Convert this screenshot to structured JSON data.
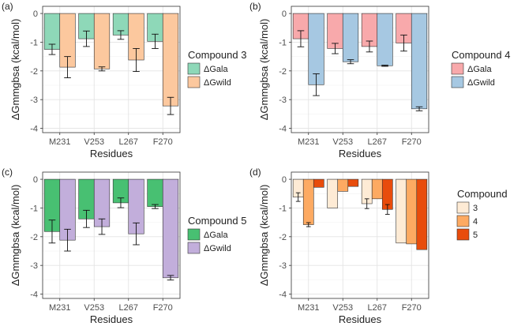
{
  "figure": {
    "title": "",
    "panel_labels": [
      "(a)",
      "(b)",
      "(c)",
      "(d)"
    ]
  },
  "chart_data": [
    {
      "type": "bar",
      "panel": "(a)",
      "categories": [
        "M231",
        "V253",
        "L267",
        "F270"
      ],
      "series": [
        {
          "name": "ΔGala",
          "values": [
            -1.25,
            -0.88,
            -0.75,
            -0.97
          ],
          "errors": [
            0.18,
            0.27,
            0.15,
            0.25
          ],
          "color": "#8ed8b8"
        },
        {
          "name": "ΔGwild",
          "values": [
            -1.87,
            -1.93,
            -1.62,
            -3.22
          ],
          "errors": [
            0.37,
            0.07,
            0.4,
            0.3
          ],
          "color": "#fcc89e"
        }
      ],
      "xlabel": "Residues",
      "ylabel": "ΔGmmgbsa (kcal/mol)",
      "ylim": [
        -4.15,
        0.25
      ],
      "yticks": [
        0,
        -1,
        -2,
        -3,
        -4
      ],
      "legend_title": "Compound 3",
      "legend_position": "right",
      "grid": true
    },
    {
      "type": "bar",
      "panel": "(b)",
      "categories": [
        "M231",
        "V253",
        "L267",
        "F270"
      ],
      "series": [
        {
          "name": "ΔGala",
          "values": [
            -0.88,
            -1.22,
            -1.15,
            -1.03
          ],
          "errors": [
            0.28,
            0.18,
            0.19,
            0.28
          ],
          "color": "#f8a9ab"
        },
        {
          "name": "ΔGwild",
          "values": [
            -2.48,
            -1.68,
            -1.82,
            -3.32
          ],
          "errors": [
            0.38,
            0.07,
            0.02,
            0.07
          ],
          "color": "#a6c8e2"
        }
      ],
      "xlabel": "Residues",
      "ylabel": "ΔGmmgbsa (kcal/mol)",
      "ylim": [
        -4.15,
        0.25
      ],
      "yticks": [
        0,
        -1,
        -2,
        -3,
        -4
      ],
      "legend_title": "Compound 4",
      "legend_position": "right",
      "grid": true
    },
    {
      "type": "bar",
      "panel": "(c)",
      "categories": [
        "M231",
        "V253",
        "L267",
        "F270"
      ],
      "series": [
        {
          "name": "ΔGala",
          "values": [
            -1.82,
            -1.38,
            -0.82,
            -0.95
          ],
          "errors": [
            0.4,
            0.3,
            0.17,
            0.07
          ],
          "color": "#48c072"
        },
        {
          "name": "ΔGwild",
          "values": [
            -2.12,
            -1.65,
            -1.9,
            -3.43
          ],
          "errors": [
            0.38,
            0.27,
            0.38,
            0.08
          ],
          "color": "#c2aedb"
        }
      ],
      "xlabel": "Residues",
      "ylabel": "ΔGmmgbsa (kcal/mol)",
      "ylim": [
        -4.15,
        0.25
      ],
      "yticks": [
        0,
        -1,
        -2,
        -3,
        -4
      ],
      "legend_title": "Compound 5",
      "legend_position": "right",
      "grid": true
    },
    {
      "type": "bar",
      "panel": "(d)",
      "categories": [
        "M231",
        "V253",
        "L267",
        "F270"
      ],
      "series": [
        {
          "name": "3",
          "values": [
            -0.62,
            -1.0,
            -0.85,
            -2.22
          ],
          "errors": [
            0.15,
            0.0,
            0.17,
            0.0
          ],
          "color": "#feebd5"
        },
        {
          "name": "4",
          "values": [
            -1.58,
            -0.42,
            -0.68,
            -2.25
          ],
          "errors": [
            0.07,
            0.0,
            0.0,
            0.0
          ],
          "color": "#fdaa62"
        },
        {
          "name": "5",
          "values": [
            -0.28,
            -0.25,
            -1.05,
            -2.45
          ],
          "errors": [
            0.0,
            0.0,
            0.17,
            0.0
          ],
          "color": "#e84c0c"
        }
      ],
      "xlabel": "Residues",
      "ylabel": "ΔGmmgbsa (kcal/mol)",
      "ylim": [
        -4.15,
        0.25
      ],
      "yticks": [
        0,
        -1,
        -2,
        -3,
        -4
      ],
      "legend_title": "Compound",
      "legend_position": "right",
      "grid": true
    }
  ]
}
